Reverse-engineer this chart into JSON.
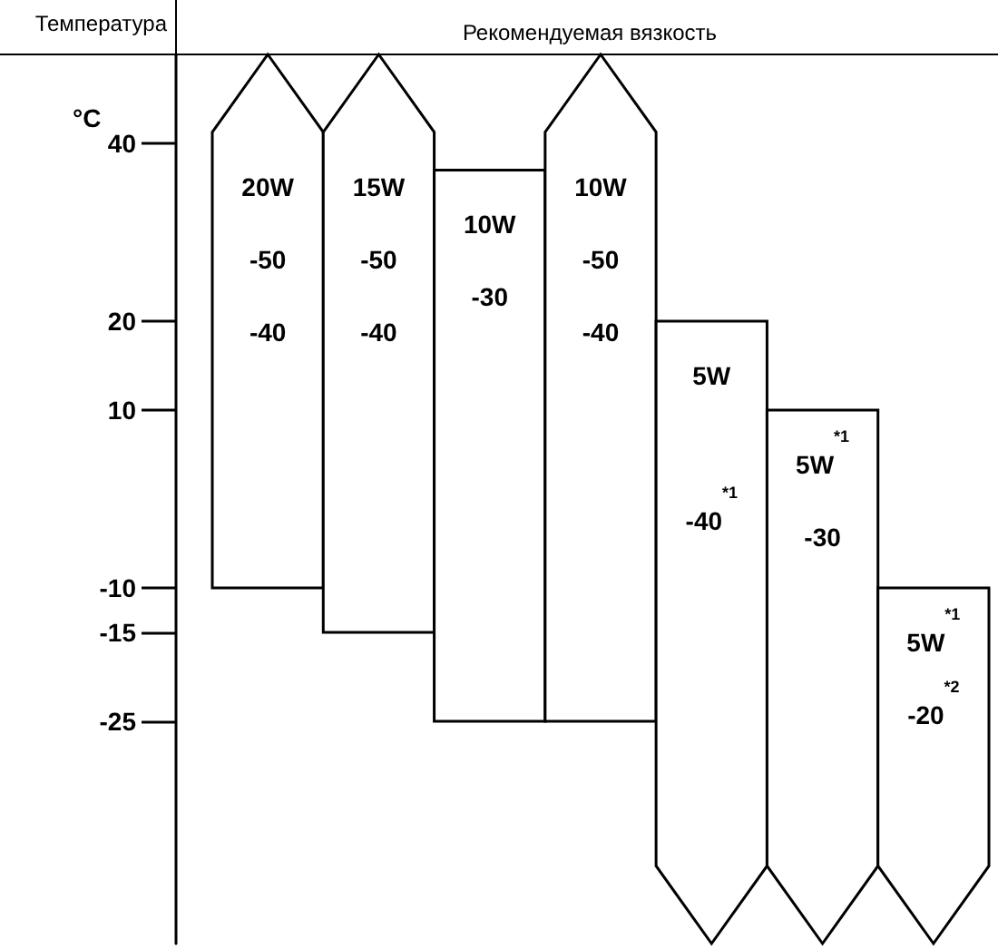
{
  "chart_data": {
    "type": "bar",
    "title": "Рекомендуемая вязкость",
    "ylabel": "Температура",
    "annotations": [
      "°C"
    ],
    "categories": [
      "20W\n-50\n-40",
      "15W\n-50\n-40",
      "10W\n-30",
      "10W\n-50\n-40",
      "5W\n\n-40$^{*1}$",
      "5W$^{*1}$\n-30",
      "5W$^{*1}$\n-20$^{*2}$"
    ],
    "base": [
      -10,
      -15,
      -25,
      -25,
      -50,
      -50,
      -50
    ],
    "values": [
      60,
      65,
      62,
      75,
      70,
      60,
      40
    ],
    "color": "#ffffff",
    "ylim": [
      -50,
      50
    ],
    "yticks": [
      40,
      20,
      10,
      -10,
      -15,
      -25
    ]
  }
}
